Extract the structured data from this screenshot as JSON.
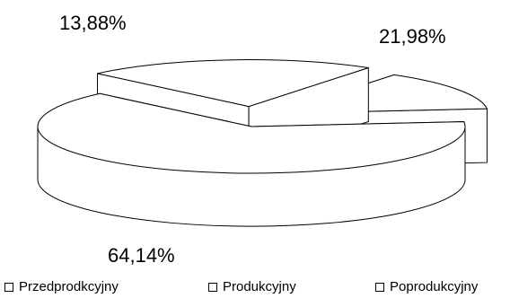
{
  "chart_data": {
    "type": "pie",
    "title": "",
    "categories": [
      "Przedprodkcyjny",
      "Produkcyjny",
      "Poprodukcyjny"
    ],
    "values": [
      13.88,
      64.14,
      21.98
    ],
    "data_labels": [
      "13,88%",
      "64,14%",
      "21,98%"
    ],
    "legend": [
      "Przedprodkcyjny",
      "Produkcyjny",
      "Poprodukcyjny"
    ],
    "legend_position": "bottom",
    "style": "3d exploded pie, white slices with black outlines"
  }
}
